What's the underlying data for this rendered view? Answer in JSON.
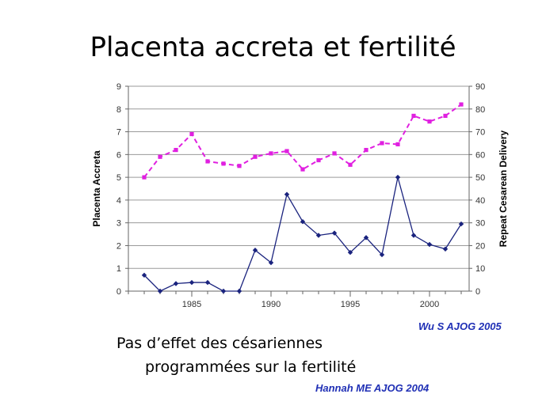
{
  "slide": {
    "title": "Placenta accreta et fertilité",
    "body_line1": "Pas d’effet des césariennes",
    "body_line2": "programmées sur la fertilité",
    "ref_wu": "Wu S AJOG 2005",
    "ref_hannah": "Hannah ME AJOG 2004"
  },
  "colors": {
    "accreta": "#1a237e",
    "cesarean": "#e020e0",
    "grid": "#9a9a9a",
    "ref": "#1f2fb5"
  },
  "chart_data": {
    "type": "line",
    "xlabel": "",
    "ylabel_left": "Placenta Accreta",
    "ylabel_right": "Repeat Cesarean Delivery",
    "xlim": [
      1981,
      2002.5
    ],
    "ylim_left": [
      0,
      9
    ],
    "ylim_right": [
      0,
      90
    ],
    "grid": true,
    "x_ticks": [
      1985,
      1990,
      1995,
      2000
    ],
    "y_ticks_left": [
      0,
      1,
      2,
      3,
      4,
      5,
      6,
      7,
      8,
      9
    ],
    "y_ticks_right": [
      0,
      10,
      20,
      30,
      40,
      50,
      60,
      70,
      80,
      90
    ],
    "x": [
      1982,
      1983,
      1984,
      1985,
      1986,
      1987,
      1988,
      1989,
      1990,
      1991,
      1992,
      1993,
      1994,
      1995,
      1996,
      1997,
      1998,
      1999,
      2000,
      2001,
      2002
    ],
    "series": [
      {
        "axis": "left",
        "style": "solid",
        "marker": "diamond",
        "values": [
          0.7,
          0.0,
          0.33,
          0.38,
          0.38,
          0.0,
          0.0,
          1.8,
          1.25,
          4.25,
          3.05,
          2.45,
          2.55,
          1.7,
          2.35,
          1.6,
          5.0,
          2.45,
          2.05,
          1.85,
          2.95
        ]
      },
      {
        "axis": "right",
        "style": "dashed",
        "marker": "square",
        "values": [
          50,
          59,
          62,
          69,
          57,
          56,
          55,
          59,
          60.5,
          61.5,
          53.5,
          57.5,
          60.5,
          55.5,
          62,
          65,
          64.5,
          77,
          74.5,
          77,
          82
        ]
      }
    ]
  }
}
